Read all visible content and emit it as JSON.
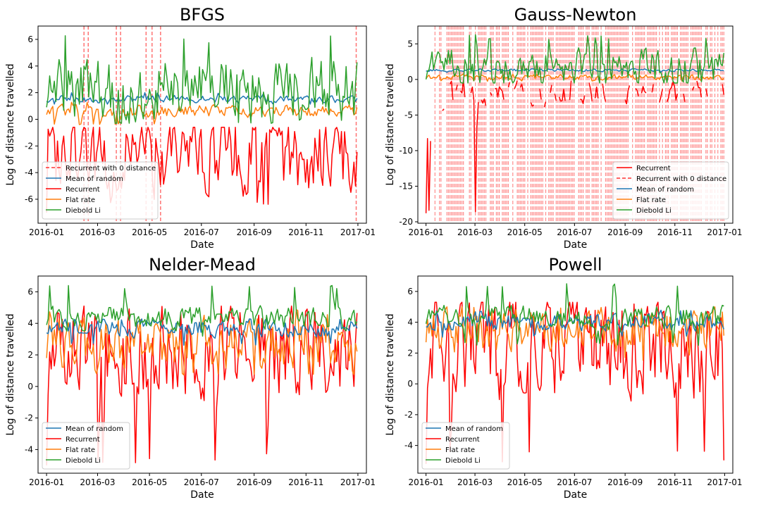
{
  "chart_data": [
    {
      "type": "line",
      "title": "BFGS",
      "xlabel": "Date",
      "ylabel": "Log of distance travelled",
      "xlim": [
        "2016-01",
        "2017-01"
      ],
      "ylim": [
        -7.8,
        7.0
      ],
      "x_ticks": [
        "2016-01",
        "2016-03",
        "2016-05",
        "2016-07",
        "2016-09",
        "2016-11",
        "2017-01"
      ],
      "y_ticks": [
        -6,
        -4,
        -2,
        0,
        2,
        4,
        6
      ],
      "legend_position": "lower-left",
      "legend": [
        "Recurrent with 0 distance",
        "Mean of random",
        "Recurrent",
        "Flat rate",
        "Diebold Li"
      ],
      "zero_distance_dates": [
        "2016-02-14",
        "2016-02-19",
        "2016-03-23",
        "2016-03-28",
        "2016-04-27",
        "2016-05-04",
        "2016-05-14",
        "2016-12-30"
      ],
      "series": [
        {
          "name": "Mean of random",
          "color": "#1f77b4",
          "mean": 1.5,
          "amplitude": 0.15,
          "low": 1.1,
          "high": 2.0
        },
        {
          "name": "Recurrent",
          "color": "#ff0000",
          "mean": -2.8,
          "amplitude": 1.6,
          "low": -7.0,
          "high": -0.6
        },
        {
          "name": "Flat rate",
          "color": "#ff7f0e",
          "mean": 0.6,
          "amplitude": 0.25,
          "low": -0.4,
          "high": 1.3
        },
        {
          "name": "Diebold Li",
          "color": "#2ca02c",
          "mean": 2.2,
          "amplitude": 1.3,
          "low": -0.3,
          "high": 6.4
        }
      ]
    },
    {
      "type": "line",
      "title": "Gauss-Newton",
      "xlabel": "Date",
      "ylabel": "Log of distance travelled",
      "xlim": [
        "2016-01",
        "2017-01"
      ],
      "ylim": [
        -20.2,
        7.5
      ],
      "x_ticks": [
        "2016-01",
        "2016-03",
        "2016-05",
        "2016-07",
        "2016-09",
        "2016-11",
        "2017-01"
      ],
      "y_ticks": [
        -20,
        -15,
        -10,
        -5,
        0,
        5
      ],
      "legend_position": "lower-right",
      "legend": [
        "Recurrent",
        "Recurrent with 0 distance",
        "Mean of random",
        "Flat rate",
        "Diebold Li"
      ],
      "zero_distance_share": 0.72,
      "series": [
        {
          "name": "Recurrent",
          "color": "#ff0000",
          "mean": -2.2,
          "amplitude": 0.9,
          "low": -18.8,
          "high": 0.0
        },
        {
          "name": "Mean of random",
          "color": "#1f77b4",
          "mean": 1.3,
          "amplitude": 0.1,
          "low": 1.0,
          "high": 1.5
        },
        {
          "name": "Flat rate",
          "color": "#ff7f0e",
          "mean": 0.3,
          "amplitude": 0.2,
          "low": -0.3,
          "high": 0.8
        },
        {
          "name": "Diebold Li",
          "color": "#2ca02c",
          "mean": 1.5,
          "amplitude": 1.5,
          "low": -0.5,
          "high": 6.3
        }
      ]
    },
    {
      "type": "line",
      "title": "Nelder-Mead",
      "xlabel": "Date",
      "ylabel": "Log of distance travelled",
      "xlim": [
        "2016-01",
        "2017-01"
      ],
      "ylim": [
        -5.5,
        7.0
      ],
      "x_ticks": [
        "2016-01",
        "2016-03",
        "2016-05",
        "2016-07",
        "2016-09",
        "2016-11",
        "2017-01"
      ],
      "y_ticks": [
        -4,
        -2,
        0,
        2,
        4,
        6
      ],
      "legend_position": "lower-left",
      "legend": [
        "Mean of random",
        "Recurrent",
        "Flat rate",
        "Diebold Li"
      ],
      "series": [
        {
          "name": "Mean of random",
          "color": "#1f77b4",
          "mean": 3.7,
          "amplitude": 0.3,
          "low": 2.6,
          "high": 4.3
        },
        {
          "name": "Recurrent",
          "color": "#ff0000",
          "mean": 2.3,
          "amplitude": 1.6,
          "low": -5.0,
          "high": 5.1
        },
        {
          "name": "Flat rate",
          "color": "#ff7f0e",
          "mean": 2.7,
          "amplitude": 0.9,
          "low": 0.7,
          "high": 4.9
        },
        {
          "name": "Diebold Li",
          "color": "#2ca02c",
          "mean": 4.3,
          "amplitude": 0.4,
          "low": 3.0,
          "high": 6.4
        }
      ]
    },
    {
      "type": "line",
      "title": "Powell",
      "xlabel": "Date",
      "ylabel": "Log of distance travelled",
      "xlim": [
        "2016-01",
        "2017-01"
      ],
      "ylim": [
        -5.8,
        7.0
      ],
      "x_ticks": [
        "2016-01",
        "2016-03",
        "2016-05",
        "2016-07",
        "2016-09",
        "2016-11",
        "2017-01"
      ],
      "y_ticks": [
        -4,
        -2,
        0,
        2,
        4,
        6
      ],
      "legend_position": "lower-left",
      "legend": [
        "Mean of random",
        "Recurrent",
        "Flat rate",
        "Diebold Li"
      ],
      "series": [
        {
          "name": "Mean of random",
          "color": "#1f77b4",
          "mean": 4.0,
          "amplitude": 0.3,
          "low": 3.0,
          "high": 4.8
        },
        {
          "name": "Recurrent",
          "color": "#ff0000",
          "mean": 2.4,
          "amplitude": 1.8,
          "low": -5.2,
          "high": 5.3
        },
        {
          "name": "Flat rate",
          "color": "#ff7f0e",
          "mean": 3.5,
          "amplitude": 0.8,
          "low": 1.5,
          "high": 5.0
        },
        {
          "name": "Diebold Li",
          "color": "#2ca02c",
          "mean": 4.3,
          "amplitude": 0.4,
          "low": 2.5,
          "high": 6.5
        }
      ]
    }
  ]
}
